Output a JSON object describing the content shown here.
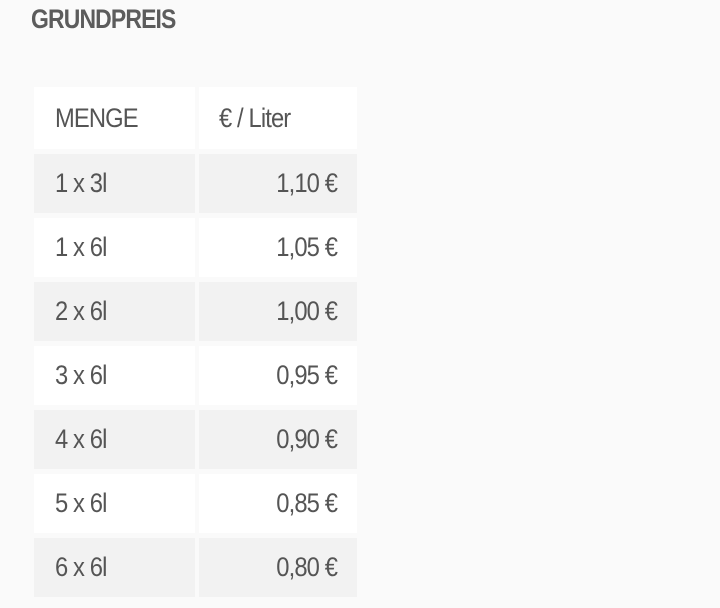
{
  "title": "GRUNDPREIS",
  "table": {
    "headers": [
      "MENGE",
      "€ / Liter"
    ],
    "rows": [
      [
        "1 x 3l",
        "1,10 €"
      ],
      [
        "1 x 6l",
        "1,05 €"
      ],
      [
        "2 x 6l",
        "1,00 €"
      ],
      [
        "3 x 6l",
        "0,95 €"
      ],
      [
        "4 x 6l",
        "0,90 €"
      ],
      [
        "5 x 6l",
        "0,85 €"
      ],
      [
        "6 x 6l",
        "0,80 €"
      ]
    ]
  }
}
